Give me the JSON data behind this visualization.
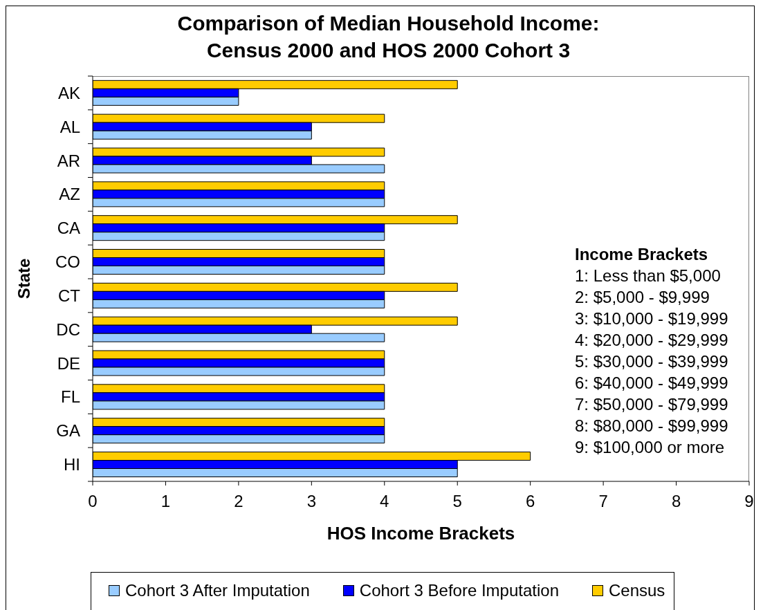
{
  "chart_data": {
    "type": "bar",
    "orientation": "horizontal",
    "title": "Comparison of Median Household Income:\nCensus 2000 and HOS 2000 Cohort 3",
    "xlabel": "HOS Income Brackets",
    "ylabel": "State",
    "categories": [
      "AK",
      "AL",
      "AR",
      "AZ",
      "CA",
      "CO",
      "CT",
      "DC",
      "DE",
      "FL",
      "GA",
      "HI"
    ],
    "series": [
      {
        "name": "Cohort 3 After Imputation",
        "color": "#99ccff",
        "values": [
          2,
          3,
          4,
          4,
          4,
          4,
          4,
          4,
          4,
          4,
          4,
          5
        ]
      },
      {
        "name": "Cohort 3 Before Imputation",
        "color": "#0000ff",
        "values": [
          2,
          3,
          3,
          4,
          4,
          4,
          4,
          3,
          4,
          4,
          4,
          5
        ]
      },
      {
        "name": "Census",
        "color": "#ffcc00",
        "values": [
          5,
          4,
          4,
          4,
          5,
          4,
          5,
          5,
          4,
          4,
          4,
          6
        ]
      }
    ],
    "xlim": [
      0,
      9
    ],
    "xticks": [
      0,
      1,
      2,
      3,
      4,
      5,
      6,
      7,
      8,
      9
    ],
    "legend": "bottom",
    "annotations": [
      "Income Brackets",
      "1: Less than $5,000",
      "2: $5,000 - $9,999",
      "3: $10,000 - $19,999",
      "4: $20,000 - $29,999",
      "5: $30,000 - $39,999",
      "6: $40,000 - $49,999",
      "7: $50,000 - $79,999",
      "8: $80,000 - $99,999",
      "9: $100,000 or more"
    ]
  }
}
